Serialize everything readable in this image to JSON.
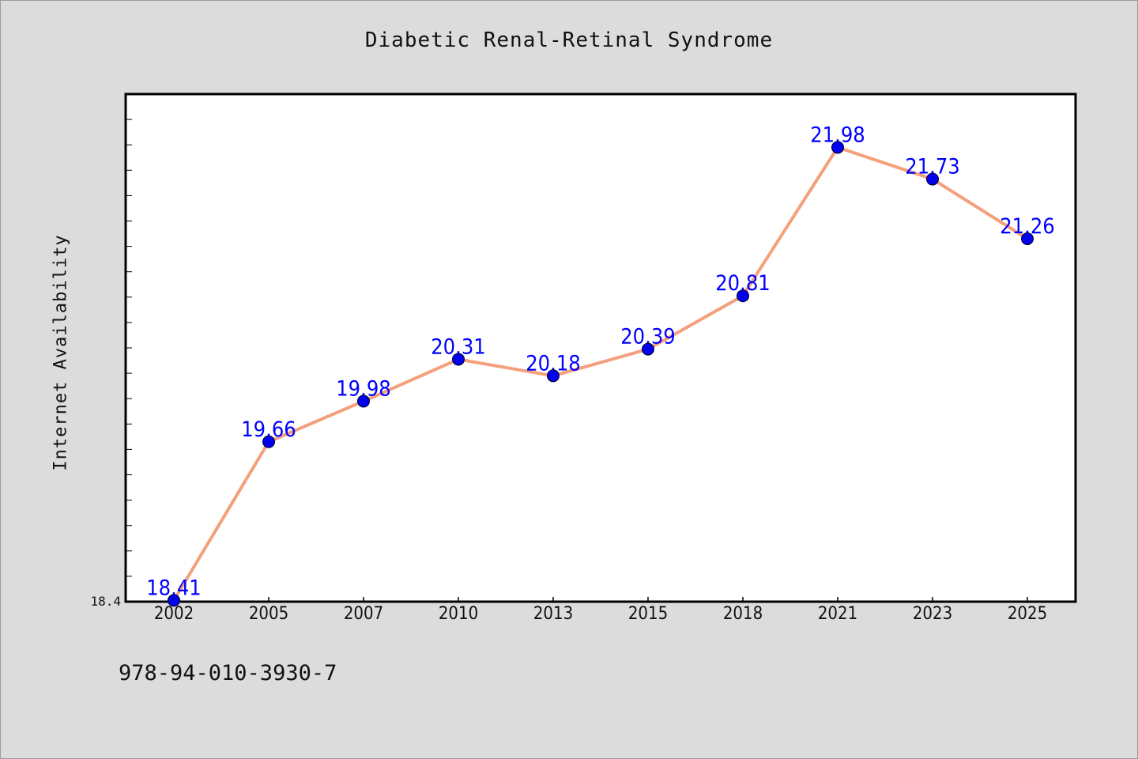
{
  "chart_data": {
    "type": "line",
    "title": "Diabetic Renal-Retinal Syndrome",
    "xlabel": "",
    "ylabel": "Internet Availability",
    "categories": [
      "2002",
      "2005",
      "2007",
      "2010",
      "2013",
      "2015",
      "2018",
      "2021",
      "2023",
      "2025"
    ],
    "series": [
      {
        "values": [
          18.41,
          19.66,
          19.98,
          20.31,
          20.18,
          20.39,
          20.81,
          21.98,
          21.73,
          21.26
        ],
        "data_labels": [
          "18.41",
          "19.66",
          "19.98",
          "20.31",
          "20.18",
          "20.39",
          "20.81",
          "21.98",
          "21.73",
          "21.26"
        ]
      }
    ],
    "y_ticks": [
      "18.4"
    ],
    "ylim": [
      18.4,
      22.4
    ],
    "grid": false,
    "legend": "none"
  },
  "footer": {
    "code": "978-94-010-3930-7"
  },
  "colors": {
    "line": "#f4a07c",
    "marker": "#0000ee",
    "data_label": "#0000ff",
    "background": "#dcdcdc",
    "plot_background": "#ffffff"
  }
}
